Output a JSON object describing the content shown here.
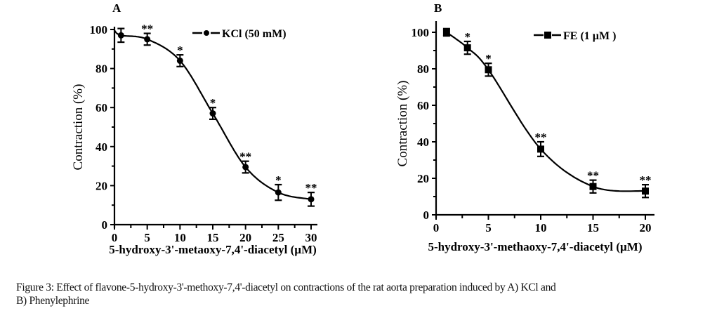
{
  "chart_data": [
    {
      "type": "scatter",
      "panel": "A",
      "title": "",
      "xlabel": "5-hydroxy-3'-metaoxy-7,4'-diacetyl (µM)",
      "ylabel": "Contraction (%)",
      "xlim": [
        0,
        30
      ],
      "ylim": [
        0,
        100
      ],
      "xticks": [
        0,
        5,
        10,
        15,
        20,
        25,
        30
      ],
      "yticks": [
        0,
        20,
        40,
        60,
        80,
        100
      ],
      "grid": false,
      "legend_position": "top-right",
      "marker": "circle",
      "series": [
        {
          "name": "KCl (50 mM)",
          "x": [
            1,
            5,
            10,
            15,
            20,
            25,
            30
          ],
          "y": [
            97,
            95,
            84,
            57,
            29.5,
            16.5,
            13
          ],
          "err": [
            3.5,
            3,
            3,
            3,
            3,
            4,
            3.5
          ],
          "significance": [
            "",
            "**",
            "*",
            "*",
            "**",
            "*",
            "**"
          ],
          "fit_curve": true
        }
      ]
    },
    {
      "type": "scatter",
      "panel": "B",
      "title": "",
      "xlabel": "5-hydroxy-3'-methaoxy-7,4'-diacetyl (µM)",
      "ylabel": "Contraction (%)",
      "xlim": [
        0,
        20
      ],
      "ylim": [
        0,
        100
      ],
      "xticks": [
        0,
        5,
        10,
        15,
        20
      ],
      "yticks": [
        0,
        20,
        40,
        60,
        80,
        100
      ],
      "grid": false,
      "legend_position": "top-right",
      "marker": "square",
      "series": [
        {
          "name": "FE (1 µM )",
          "x": [
            1,
            3,
            5,
            10,
            15,
            20
          ],
          "y": [
            100,
            91.5,
            79.5,
            36,
            15.5,
            13
          ],
          "err": [
            2,
            3.5,
            3.5,
            4,
            3.5,
            3.5
          ],
          "significance": [
            "",
            "*",
            "*",
            "**",
            "**",
            "**"
          ],
          "fit_curve": true
        }
      ]
    }
  ],
  "panels": {
    "a": {
      "letter": "A",
      "legend": "KCl (50 mM)",
      "xlabel": "5-hydroxy-3'-metaoxy-7,4'-diacetyl (µM)",
      "ylabel": "Contraction (%)"
    },
    "b": {
      "letter": "B",
      "legend": "FE (1 µM )",
      "xlabel": "5-hydroxy-3'-methaoxy-7,4'-diacetyl (µM)",
      "ylabel": "Contraction (%)"
    }
  },
  "caption": {
    "line1": "Figure 3: Effect of flavone-5-hydroxy-3'-methoxy-7,4'-diacetyl on contractions of the rat aorta preparation induced by A) KCl and",
    "line2": "B) Phenylephrine"
  }
}
